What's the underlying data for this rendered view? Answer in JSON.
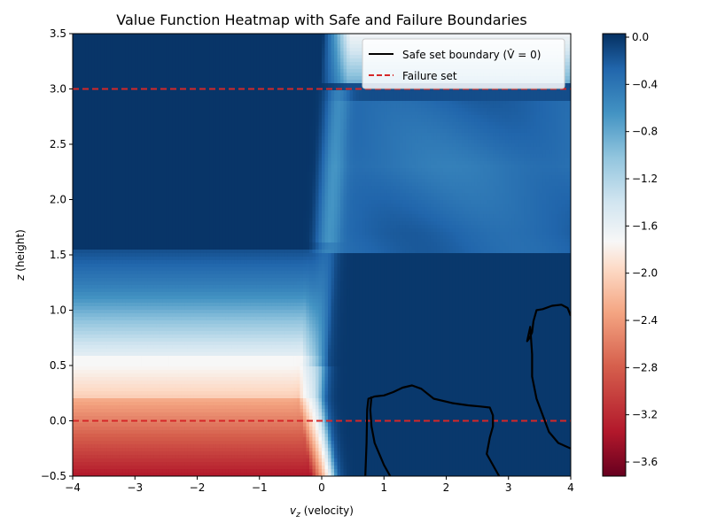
{
  "chart_data": {
    "type": "heatmap",
    "title": "Value Function Heatmap with Safe and Failure Boundaries",
    "xlabel_var": "v",
    "xlabel_sub": "z",
    "xlabel_rest": " (velocity)",
    "ylabel_var": "z",
    "ylabel_rest": " (height)",
    "xlim": [
      -4,
      4
    ],
    "ylim": [
      -0.5,
      3.5
    ],
    "x_ticks": [
      "−4",
      "−3",
      "−2",
      "−1",
      "0",
      "1",
      "2",
      "3",
      "4"
    ],
    "x_tick_values": [
      -4,
      -3,
      -2,
      -1,
      0,
      1,
      2,
      3,
      4
    ],
    "y_ticks": [
      "−0.5",
      "0.0",
      "0.5",
      "1.0",
      "1.5",
      "2.0",
      "2.5",
      "3.0",
      "3.5"
    ],
    "y_tick_values": [
      -0.5,
      0,
      0.5,
      1,
      1.5,
      2,
      2.5,
      3,
      3.5
    ],
    "colorbar": {
      "colormap": "RdBu",
      "range": [
        -3.72,
        0.03
      ],
      "ticks": [
        "0.0",
        "−0.4",
        "−0.8",
        "−1.2",
        "−1.6",
        "−2.0",
        "−2.4",
        "−2.8",
        "−3.2",
        "−3.6"
      ],
      "tick_values": [
        0,
        -0.4,
        -0.8,
        -1.2,
        -1.6,
        -2.0,
        -2.4,
        -2.8,
        -3.2,
        -3.6
      ]
    },
    "legend": {
      "position": "top-right",
      "entries": [
        {
          "label": "Safe set boundary (V̂ = 0)",
          "color": "#000000",
          "style": "solid"
        },
        {
          "label": "Failure set",
          "color": "#d62728",
          "style": "dashed"
        }
      ]
    },
    "failure_lines_z": [
      3.0,
      0.0
    ],
    "safe_boundaries": [
      {
        "points": [
          [
            0.7,
            -0.5
          ],
          [
            0.72,
            -0.2
          ],
          [
            0.73,
            0.1
          ],
          [
            0.75,
            0.2
          ],
          [
            0.85,
            0.22
          ],
          [
            1.0,
            0.23
          ],
          [
            1.15,
            0.26
          ],
          [
            1.3,
            0.3
          ],
          [
            1.45,
            0.32
          ],
          [
            1.6,
            0.29
          ],
          [
            1.8,
            0.2
          ],
          [
            2.1,
            0.16
          ],
          [
            2.35,
            0.14
          ],
          [
            2.55,
            0.13
          ],
          [
            2.7,
            0.12
          ],
          [
            2.75,
            0.05
          ],
          [
            2.75,
            -0.05
          ],
          [
            2.7,
            -0.15
          ],
          [
            2.65,
            -0.3
          ],
          [
            2.75,
            -0.4
          ],
          [
            2.85,
            -0.5
          ]
        ]
      },
      {
        "points": [
          [
            1.1,
            -0.5
          ],
          [
            1.0,
            -0.4
          ],
          [
            0.85,
            -0.2
          ],
          [
            0.8,
            -0.05
          ],
          [
            0.78,
            0.1
          ],
          [
            0.8,
            0.22
          ]
        ]
      },
      {
        "points": [
          [
            4.0,
            0.95
          ],
          [
            3.95,
            1.02
          ],
          [
            3.85,
            1.05
          ],
          [
            3.7,
            1.04
          ],
          [
            3.55,
            1.01
          ],
          [
            3.45,
            1.0
          ],
          [
            3.4,
            0.9
          ],
          [
            3.38,
            0.8
          ],
          [
            3.34,
            0.75
          ],
          [
            3.3,
            0.72
          ],
          [
            3.35,
            0.85
          ],
          [
            3.38,
            0.6
          ],
          [
            3.38,
            0.4
          ],
          [
            3.45,
            0.2
          ],
          [
            3.55,
            0.05
          ],
          [
            3.65,
            -0.1
          ],
          [
            3.8,
            -0.2
          ],
          [
            4.0,
            -0.25
          ]
        ]
      }
    ]
  }
}
